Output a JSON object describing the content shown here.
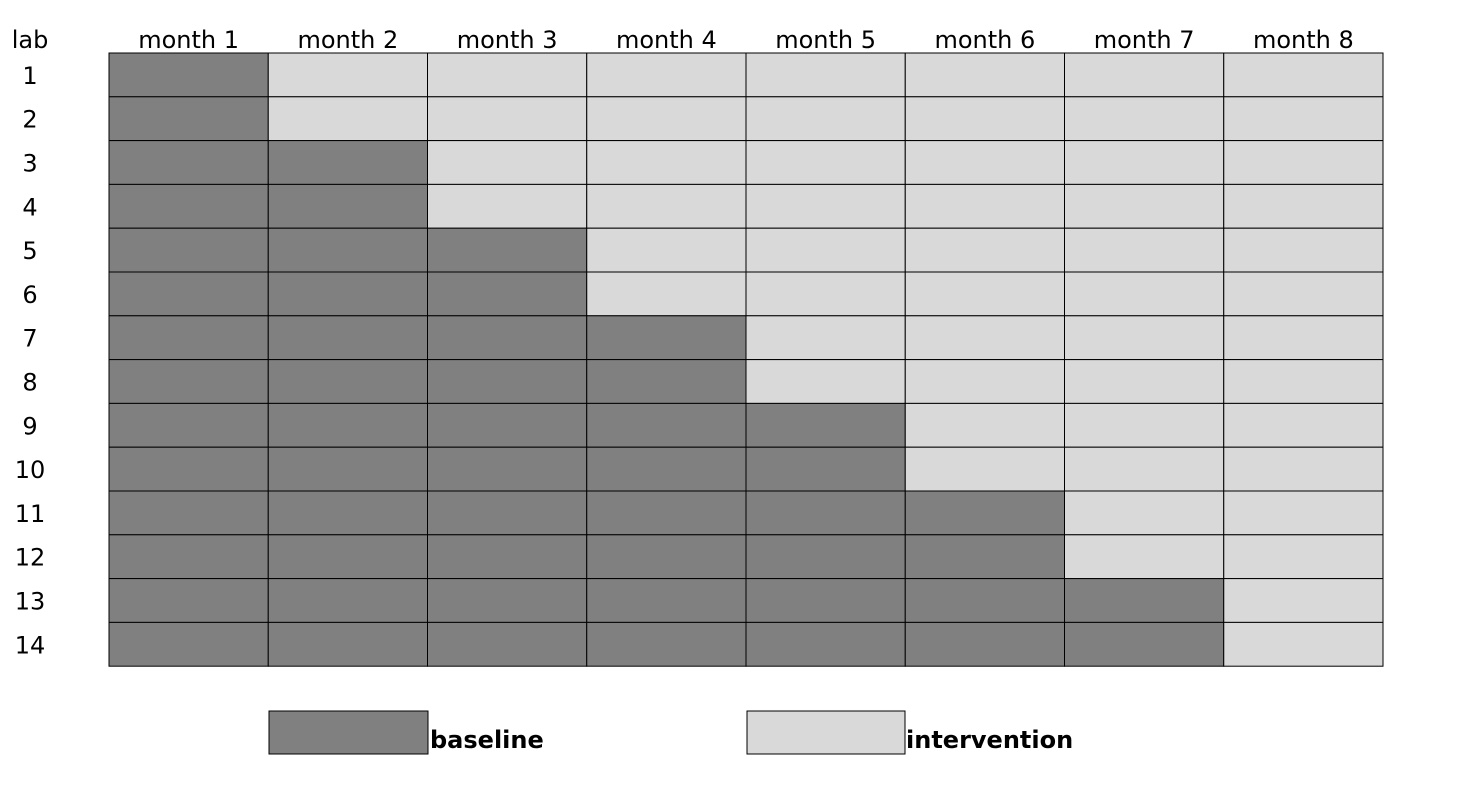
{
  "row_header": "lab",
  "columns": [
    "month 1",
    "month 2",
    "month 3",
    "month 4",
    "month 5",
    "month 6",
    "month 7",
    "month 8"
  ],
  "rows": [
    {
      "label": "1",
      "baseline_months": 1
    },
    {
      "label": "2",
      "baseline_months": 1
    },
    {
      "label": "3",
      "baseline_months": 2
    },
    {
      "label": "4",
      "baseline_months": 2
    },
    {
      "label": "5",
      "baseline_months": 3
    },
    {
      "label": "6",
      "baseline_months": 3
    },
    {
      "label": "7",
      "baseline_months": 4
    },
    {
      "label": "8",
      "baseline_months": 4
    },
    {
      "label": "9",
      "baseline_months": 5
    },
    {
      "label": "10",
      "baseline_months": 5
    },
    {
      "label": "11",
      "baseline_months": 6
    },
    {
      "label": "12",
      "baseline_months": 6
    },
    {
      "label": "13",
      "baseline_months": 7
    },
    {
      "label": "14",
      "baseline_months": 7
    }
  ],
  "legend": {
    "baseline": {
      "label": "baseline",
      "color": "#808080"
    },
    "intervention": {
      "label": "intervention",
      "color": "#d9d9d9"
    }
  },
  "border_color": "#000000"
}
